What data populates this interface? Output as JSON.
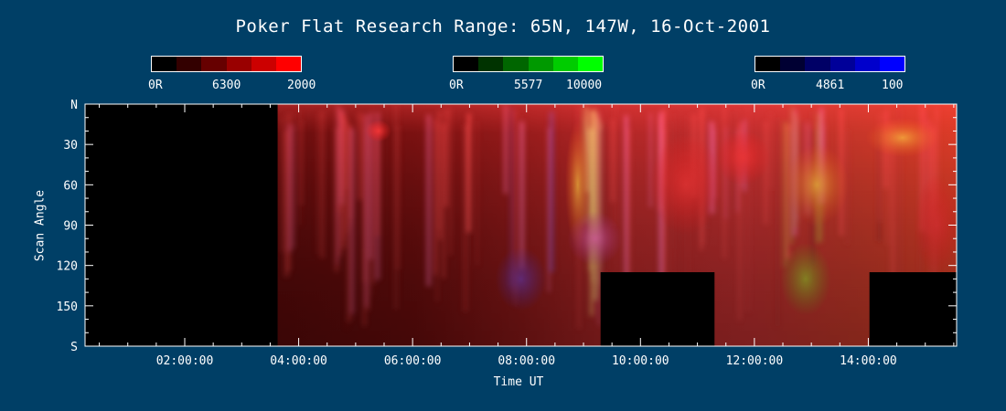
{
  "chart_data": {
    "type": "heatmap",
    "title": "Poker Flat Research Range: 65N, 147W, 16-Oct-2001",
    "xlabel": "Time UT",
    "ylabel": "Scan Angle",
    "x_ticks": [
      "02:00:00",
      "04:00:00",
      "06:00:00",
      "08:00:00",
      "10:00:00",
      "12:00:00",
      "14:00:00"
    ],
    "x_tick_hours": [
      2,
      4,
      6,
      8,
      10,
      12,
      14
    ],
    "xlim_hours": [
      0.25,
      15.55
    ],
    "y_ticks": [
      "N",
      "30",
      "60",
      "90",
      "120",
      "150",
      "S"
    ],
    "y_tick_values": [
      0,
      30,
      60,
      90,
      120,
      150,
      180
    ],
    "ylim": [
      0,
      180
    ],
    "no_data_regions": [
      {
        "t_start": 0.25,
        "t_end": 3.63,
        "angle_start": 0,
        "angle_end": 180
      },
      {
        "t_start": 9.3,
        "t_end": 11.3,
        "angle_start": 125,
        "angle_end": 180
      },
      {
        "t_start": 14.02,
        "t_end": 15.55,
        "angle_start": 125,
        "angle_end": 180
      }
    ],
    "colorbars": [
      {
        "name": "6300",
        "min_label": "0R",
        "max_label": "2000",
        "color": "#ff0000",
        "segments": [
          "#000000",
          "#330000",
          "#660000",
          "#990000",
          "#cc0000",
          "#ff0000"
        ]
      },
      {
        "name": "5577",
        "min_label": "0R",
        "max_label": "10000",
        "color": "#00ff00",
        "segments": [
          "#000000",
          "#003300",
          "#006600",
          "#009900",
          "#00cc00",
          "#00ff00"
        ]
      },
      {
        "name": "4861",
        "min_label": "0R",
        "max_label": "100",
        "color": "#0000ff",
        "segments": [
          "#000000",
          "#000033",
          "#000066",
          "#000099",
          "#0000cc",
          "#0000ff"
        ]
      }
    ]
  }
}
